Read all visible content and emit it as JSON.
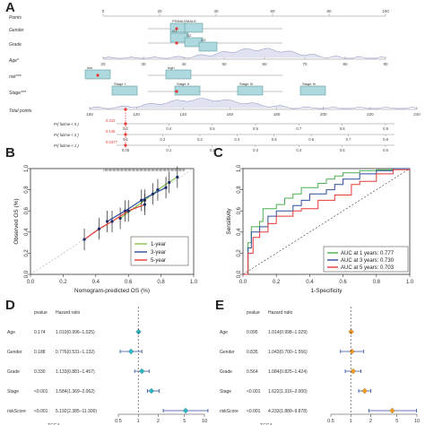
{
  "panel_labels": {
    "A": "A",
    "B": "B",
    "C": "C",
    "D": "D",
    "E": "E"
  },
  "chart_data": [
    {
      "panel": "A",
      "type": "nomogram",
      "rows": [
        {
          "name": "Points",
          "ticks": [
            "0",
            "20",
            "40",
            "60",
            "80",
            "100"
          ]
        },
        {
          "name": "Gender",
          "levels": [
            "FEMALE",
            "MALE"
          ]
        },
        {
          "name": "Grade",
          "levels": [
            "G1",
            "G2",
            "G3"
          ]
        },
        {
          "name": "Age*",
          "ticks": [
            "20",
            "30",
            "40",
            "50",
            "60",
            "70",
            "80",
            "90"
          ]
        },
        {
          "name": "risk***",
          "levels": [
            "low",
            "high"
          ]
        },
        {
          "name": "Stage***",
          "levels": [
            "Stage I",
            "Stage II",
            "Stage III",
            "Stage IV"
          ]
        },
        {
          "name": "Total points",
          "ticks": [
            "100",
            "120",
            "140",
            "160",
            "180",
            "200",
            "220",
            "240"
          ]
        }
      ],
      "prob_rows": [
        {
          "name": "Pr( futime < 5 )",
          "value": "0.313",
          "ticks": [
            "0.1",
            "0.4",
            "0.5",
            "0.6",
            "0.7",
            "0.8",
            "0.9"
          ]
        },
        {
          "name": "Pr( futime < 3 )",
          "value": "0.145",
          "ticks": [
            "0.1",
            "0.2",
            "0.3",
            "0.4",
            "0.5",
            "0.6",
            "0.7",
            "0.8"
          ]
        },
        {
          "name": "Pr( futime < 1 )",
          "value": "0.0477",
          "ticks": [
            "0.05",
            "0.1",
            "0.2",
            "0.3",
            "0.4",
            "0.5",
            "0.6"
          ]
        }
      ]
    },
    {
      "panel": "B",
      "type": "line",
      "xlabel": "Nomogram-predicted OS (%)",
      "ylabel": "Observed OS (%)",
      "xlim": [
        0,
        1
      ],
      "ylim": [
        0,
        1
      ],
      "xticks": [
        "0.0",
        "0.2",
        "0.4",
        "0.6",
        "0.8",
        "1.0"
      ],
      "yticks": [
        "0.0",
        "0.2",
        "0.4",
        "0.6",
        "0.8",
        "1.0"
      ],
      "legend": [
        "1-year",
        "3-year",
        "5-year"
      ],
      "legend_position": "bottom-right",
      "colors": {
        "1-year": "#8bc34a",
        "3-year": "#2c4d9e",
        "5-year": "#e53935"
      },
      "series": [
        {
          "name": "1-year",
          "x": [
            0.55,
            0.7,
            0.78,
            0.85,
            0.9
          ],
          "y": [
            0.53,
            0.7,
            0.8,
            0.87,
            0.92
          ]
        },
        {
          "name": "3-year",
          "x": [
            0.47,
            0.58,
            0.68,
            0.75,
            0.83
          ],
          "y": [
            0.5,
            0.6,
            0.7,
            0.76,
            0.82
          ]
        },
        {
          "name": "5-year",
          "x": [
            0.33,
            0.42,
            0.5,
            0.6,
            0.7
          ],
          "y": [
            0.33,
            0.43,
            0.5,
            0.6,
            0.66
          ]
        }
      ]
    },
    {
      "panel": "C",
      "type": "line",
      "xlabel": "1-Specificity",
      "ylabel": "Sensitivity",
      "xlim": [
        0,
        1
      ],
      "ylim": [
        0,
        1
      ],
      "xticks": [
        "0.0",
        "0.2",
        "0.4",
        "0.6",
        "0.8",
        "1.0"
      ],
      "yticks": [
        "0.0",
        "0.2",
        "0.4",
        "0.6",
        "0.8",
        "1.0"
      ],
      "legend_position": "bottom-right",
      "colors": {
        "1": "#4caf50",
        "3": "#2c4d9e",
        "5": "#e53935"
      },
      "series": [
        {
          "name": "AUC at 1 years: 0.777",
          "x": [
            0,
            0.03,
            0.05,
            0.1,
            0.12,
            0.2,
            0.25,
            0.3,
            0.35,
            0.45,
            0.5,
            0.55,
            0.6,
            0.7,
            0.8,
            0.9,
            1
          ],
          "y": [
            0,
            0.3,
            0.45,
            0.5,
            0.62,
            0.66,
            0.72,
            0.76,
            0.82,
            0.86,
            0.9,
            0.93,
            0.96,
            0.98,
            0.99,
            1,
            1
          ]
        },
        {
          "name": "AUC at 3 years: 0.730",
          "x": [
            0,
            0.03,
            0.05,
            0.1,
            0.15,
            0.2,
            0.3,
            0.35,
            0.4,
            0.5,
            0.55,
            0.6,
            0.7,
            0.8,
            0.9,
            1
          ],
          "y": [
            0,
            0.25,
            0.4,
            0.45,
            0.55,
            0.6,
            0.65,
            0.7,
            0.76,
            0.8,
            0.85,
            0.9,
            0.95,
            0.98,
            1,
            1
          ]
        },
        {
          "name": "AUC at 5 years: 0.703",
          "x": [
            0,
            0.03,
            0.06,
            0.1,
            0.15,
            0.2,
            0.3,
            0.35,
            0.45,
            0.55,
            0.65,
            0.7,
            0.8,
            0.9,
            1
          ],
          "y": [
            0,
            0.2,
            0.35,
            0.4,
            0.48,
            0.55,
            0.6,
            0.62,
            0.7,
            0.75,
            0.85,
            0.88,
            0.95,
            0.99,
            1
          ]
        }
      ]
    },
    {
      "panel": "D",
      "type": "forest",
      "headers": {
        "pvalue": "pvalue",
        "hr": "Hazard ratio"
      },
      "rows": [
        {
          "name": "Age",
          "pvalue": "0.174",
          "hr_text": "1.010(0.996–1.025)",
          "hr": 1.01,
          "lo": 0.996,
          "hi": 1.025
        },
        {
          "name": "Gender",
          "pvalue": "0.188",
          "hr_text": "0.776(0.531–1.132)",
          "hr": 0.776,
          "lo": 0.531,
          "hi": 1.132
        },
        {
          "name": "Grade",
          "pvalue": "0.330",
          "hr_text": "1.133(0.881–1.457)",
          "hr": 1.133,
          "lo": 0.881,
          "hi": 1.457
        },
        {
          "name": "Stage",
          "pvalue": "<0.001",
          "hr_text": "1.584(1.369–2.062)",
          "hr": 1.584,
          "lo": 1.369,
          "hi": 2.062
        },
        {
          "name": "riskScore",
          "pvalue": "<0.001",
          "hr_text": "5.192(2.385–11.300)",
          "hr": 5.192,
          "lo": 2.385,
          "hi": 11.3
        }
      ],
      "xticks": [
        "0.5",
        "1",
        "2",
        "5",
        "10"
      ],
      "marker_color": "#29b6c6",
      "xlabel": "TCGA"
    },
    {
      "panel": "E",
      "type": "forest",
      "headers": {
        "pvalue": "pvalue",
        "hr": "Hazard ratio"
      },
      "rows": [
        {
          "name": "Age",
          "pvalue": "0.095",
          "hr_text": "1.014(0.998–1.029)",
          "hr": 1.014,
          "lo": 0.998,
          "hi": 1.029
        },
        {
          "name": "Gender",
          "pvalue": "0.835",
          "hr_text": "1.043(0.700–1.556)",
          "hr": 1.043,
          "lo": 0.7,
          "hi": 1.556
        },
        {
          "name": "Grade",
          "pvalue": "0.564",
          "hr_text": "1.084(0.825–1.424)",
          "hr": 1.084,
          "lo": 0.825,
          "hi": 1.424
        },
        {
          "name": "Stage",
          "pvalue": "<0.001",
          "hr_text": "1.622(1.316–2.000)",
          "hr": 1.622,
          "lo": 1.316,
          "hi": 2.0
        },
        {
          "name": "riskScore",
          "pvalue": "<0.001",
          "hr_text": "4.233(1.880–9.878)",
          "hr": 4.233,
          "lo": 1.88,
          "hi": 9.878
        }
      ],
      "xticks": [
        "0.5",
        "1",
        "2",
        "5",
        "10"
      ],
      "marker_color": "#f59a23",
      "xlabel": "TCGA"
    }
  ]
}
